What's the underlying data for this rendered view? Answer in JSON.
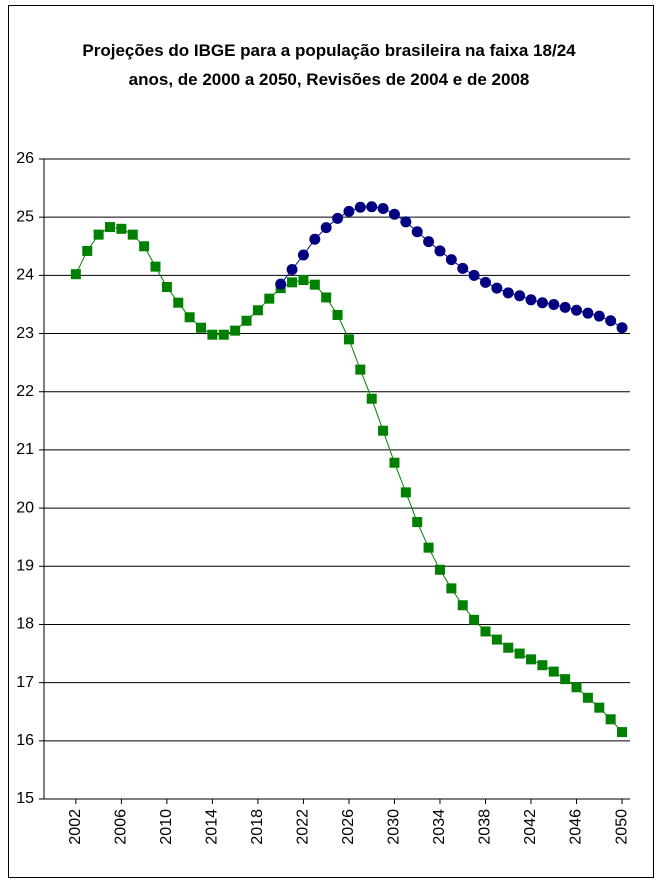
{
  "chart_data": {
    "type": "line",
    "title": "Projeções do IBGE para a população brasileira na faixa 18/24 anos, de 2000 a 2050, Revisões de 2004 e de 2008",
    "x": [
      2002,
      2003,
      2004,
      2005,
      2006,
      2007,
      2008,
      2009,
      2010,
      2011,
      2012,
      2013,
      2014,
      2015,
      2016,
      2017,
      2018,
      2019,
      2020,
      2021,
      2022,
      2023,
      2024,
      2025,
      2026,
      2027,
      2028,
      2029,
      2030,
      2031,
      2032,
      2033,
      2034,
      2035,
      2036,
      2037,
      2038,
      2039,
      2040,
      2041,
      2042,
      2043,
      2044,
      2045,
      2046,
      2047,
      2048,
      2049,
      2050
    ],
    "series": [
      {
        "color": "#008000",
        "marker": "square",
        "values": [
          24.02,
          24.42,
          24.7,
          24.83,
          24.8,
          24.7,
          24.5,
          24.15,
          23.8,
          23.53,
          23.28,
          23.1,
          22.98,
          22.98,
          23.05,
          23.22,
          23.4,
          23.6,
          23.78,
          23.88,
          23.92,
          23.84,
          23.62,
          23.32,
          22.9,
          22.38,
          21.88,
          21.33,
          20.78,
          20.27,
          19.76,
          19.32,
          18.94,
          18.62,
          18.33,
          18.08,
          17.88,
          17.74,
          17.6,
          17.5,
          17.4,
          17.3,
          17.19,
          17.06,
          16.92,
          16.74,
          16.57,
          16.37,
          16.15
        ]
      },
      {
        "color": "#000080",
        "marker": "circle",
        "values": [
          null,
          null,
          null,
          null,
          null,
          null,
          null,
          null,
          null,
          null,
          null,
          null,
          null,
          null,
          null,
          null,
          null,
          null,
          23.85,
          24.1,
          24.35,
          24.62,
          24.82,
          24.98,
          25.1,
          25.17,
          25.18,
          25.15,
          25.05,
          24.92,
          24.75,
          24.58,
          24.42,
          24.27,
          24.12,
          24.0,
          23.88,
          23.78,
          23.7,
          23.65,
          23.58,
          23.53,
          23.5,
          23.45,
          23.4,
          23.35,
          23.3,
          23.22,
          23.1
        ]
      }
    ],
    "xlim": [
      1999.2,
      2050.7
    ],
    "xticks": [
      2002,
      2006,
      2010,
      2014,
      2018,
      2022,
      2026,
      2030,
      2034,
      2038,
      2042,
      2046,
      2050
    ],
    "ylim": [
      15,
      26
    ],
    "yticks": [
      15,
      16,
      17,
      18,
      19,
      20,
      21,
      22,
      23,
      24,
      25,
      26
    ],
    "grid": true
  }
}
